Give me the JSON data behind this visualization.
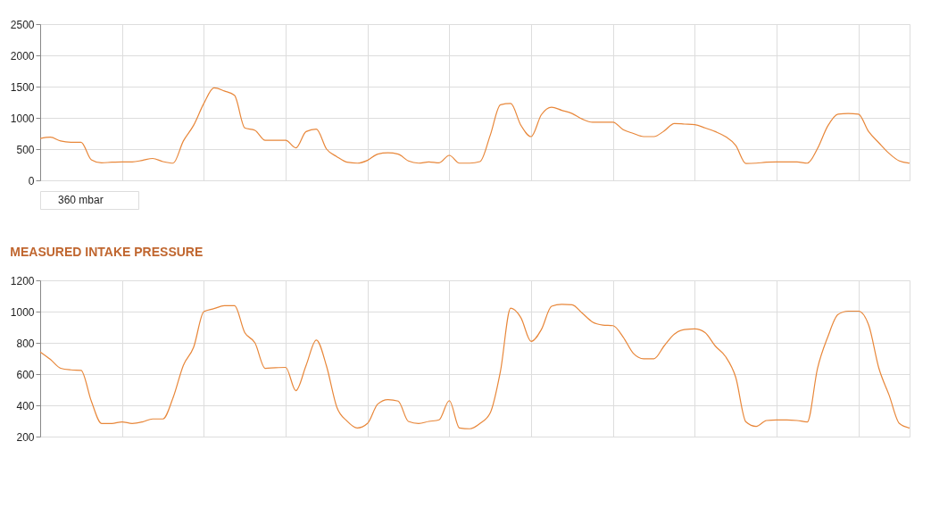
{
  "chart_data": [
    {
      "type": "line",
      "categories": [
        null,
        null,
        null,
        null,
        null,
        null,
        null,
        null,
        null,
        null,
        null,
        null,
        null,
        null,
        null,
        null,
        null,
        null,
        null,
        null,
        null,
        null,
        null,
        null,
        null,
        null,
        null,
        null,
        null,
        null,
        null,
        null,
        null,
        null,
        null,
        null,
        null,
        null,
        null,
        null,
        null,
        null,
        null,
        null,
        null,
        null,
        null,
        null,
        null,
        null,
        null,
        null,
        null,
        null,
        null,
        null,
        null,
        null,
        null,
        null,
        null,
        null,
        null,
        null,
        null,
        null,
        null,
        null,
        null,
        null,
        null,
        null,
        null,
        null,
        null,
        null,
        null,
        null,
        null,
        null,
        null,
        null,
        null,
        null,
        null,
        null
      ],
      "series": [
        {
          "color": "#e8873a",
          "values": [
            670,
            690,
            630,
            610,
            610,
            330,
            280,
            290,
            295,
            295,
            320,
            350,
            300,
            275,
            630,
            880,
            1230,
            1480,
            1430,
            1360,
            840,
            800,
            640,
            640,
            640,
            520,
            780,
            820,
            500,
            380,
            290,
            275,
            320,
            420,
            440,
            420,
            310,
            275,
            295,
            280,
            400,
            275,
            275,
            300,
            720,
            1210,
            1230,
            880,
            700,
            1050,
            1170,
            1120,
            1070,
            980,
            930,
            930,
            930,
            810,
            750,
            700,
            700,
            790,
            910,
            900,
            890,
            840,
            780,
            700,
            560,
            270,
            275,
            290,
            295,
            295,
            295,
            275,
            510,
            870,
            1060,
            1070,
            1060,
            780,
            600,
            430,
            310,
            275
          ]
        }
      ],
      "ylim": [
        0,
        2500
      ],
      "yticks": [
        0,
        500,
        1000,
        1500,
        2000,
        2500
      ],
      "grid": true,
      "tick_labels": "y",
      "line_style": "solid",
      "marker": "none",
      "annotations": [
        "360  mbar"
      ]
    },
    {
      "type": "line",
      "title": "MEASURED INTAKE PRESSURE",
      "categories": [
        null,
        null,
        null,
        null,
        null,
        null,
        null,
        null,
        null,
        null,
        null,
        null,
        null,
        null,
        null,
        null,
        null,
        null,
        null,
        null,
        null,
        null,
        null,
        null,
        null,
        null,
        null,
        null,
        null,
        null,
        null,
        null,
        null,
        null,
        null,
        null,
        null,
        null,
        null,
        null,
        null,
        null,
        null,
        null,
        null,
        null,
        null,
        null,
        null,
        null,
        null,
        null,
        null,
        null,
        null,
        null,
        null,
        null,
        null,
        null,
        null,
        null,
        null,
        null,
        null,
        null,
        null,
        null,
        null,
        null,
        null,
        null,
        null,
        null,
        null,
        null,
        null,
        null,
        null,
        null,
        null,
        null,
        null,
        null,
        null,
        null
      ],
      "series": [
        {
          "color": "#e8873a",
          "values": [
            742,
            694,
            637,
            627,
            624,
            427,
            284,
            284,
            294,
            284,
            294,
            313,
            313,
            450,
            656,
            771,
            1000,
            1019,
            1038,
            1038,
            866,
            800,
            637,
            641,
            643,
            494,
            656,
            818,
            650,
            389,
            299,
            255,
            284,
            408,
            437,
            427,
            297,
            284,
            297,
            307,
            430,
            255,
            250,
            284,
            351,
            618,
            1022,
            961,
            809,
            885,
            1034,
            1047,
            1044,
            990,
            933,
            914,
            910,
            837,
            732,
            698,
            698,
            780,
            856,
            885,
            889,
            866,
            780,
            713,
            580,
            294,
            265,
            303,
            307,
            307,
            303,
            294,
            637,
            837,
            981,
            1003,
            1003,
            914,
            637,
            465,
            284,
            255
          ]
        }
      ],
      "ylim": [
        200,
        1200
      ],
      "yticks": [
        200,
        400,
        600,
        800,
        1000,
        1200
      ],
      "grid": true,
      "tick_labels": "y",
      "line_style": "solid",
      "marker": "none"
    }
  ]
}
